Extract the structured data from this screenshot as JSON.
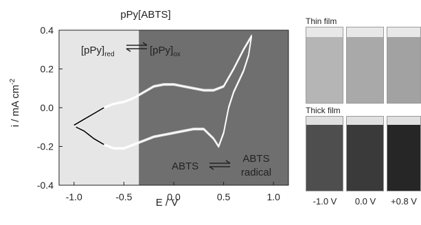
{
  "chart_data": {
    "type": "line",
    "title": "pPy[ABTS]",
    "xlabel": "E / V",
    "ylabel": "i / mA cm",
    "ylabel_superscript": "-2",
    "xlim": [
      -1.15,
      1.15
    ],
    "ylim": [
      -0.4,
      0.4
    ],
    "x_ticks": [
      "-1.0",
      "-0.5",
      "0.0",
      "0.5",
      "1.0"
    ],
    "y_ticks": [
      "0.4",
      "0.2",
      "0.0",
      "-0.2",
      "-0.4"
    ],
    "regions": [
      {
        "from": -1.15,
        "to": -0.35,
        "color": "#e6e6e6"
      },
      {
        "from": -0.35,
        "to": 1.15,
        "color": "#6f6f6f"
      }
    ],
    "series": [
      {
        "color": "#ffffff",
        "x": [
          -1.0,
          -0.9,
          -0.8,
          -0.7,
          -0.6,
          -0.5,
          -0.4,
          -0.3,
          -0.2,
          -0.1,
          0.0,
          0.1,
          0.2,
          0.3,
          0.4,
          0.5,
          0.6,
          0.7,
          0.78,
          0.75,
          0.7,
          0.6,
          0.55,
          0.5,
          0.45,
          0.4,
          0.3,
          0.2,
          0.1,
          0.0,
          -0.1,
          -0.2,
          -0.3,
          -0.4,
          -0.5,
          -0.6,
          -0.7,
          -0.8,
          -0.9,
          -0.98
        ],
        "y": [
          -0.09,
          -0.06,
          -0.03,
          0.0,
          0.02,
          0.03,
          0.05,
          0.08,
          0.11,
          0.12,
          0.12,
          0.11,
          0.1,
          0.09,
          0.09,
          0.11,
          0.2,
          0.3,
          0.37,
          0.27,
          0.19,
          0.08,
          0.0,
          -0.13,
          -0.2,
          -0.16,
          -0.11,
          -0.11,
          -0.12,
          -0.13,
          -0.14,
          -0.15,
          -0.17,
          -0.19,
          -0.21,
          -0.21,
          -0.19,
          -0.16,
          -0.12,
          -0.1
        ]
      }
    ],
    "segment_dark_below_x": -0.78,
    "annotations": [
      {
        "text": "[pPy]",
        "sub": "red"
      },
      {
        "text": "[pPy]",
        "sub": "ox"
      },
      {
        "text": "ABTS"
      },
      {
        "text": "ABTS"
      },
      {
        "text": "radical"
      }
    ]
  },
  "photos": {
    "thin_label": "Thin film",
    "thick_label": "Thick film",
    "voltages": [
      "-1.0 V",
      "0.0 V",
      "+0.8 V"
    ],
    "thin_colors": [
      "#b5b5b5",
      "#a9a9a9",
      "#a2a2a2"
    ],
    "thick_colors": [
      "#4e4e4e",
      "#3a3a3a",
      "#262626"
    ]
  }
}
